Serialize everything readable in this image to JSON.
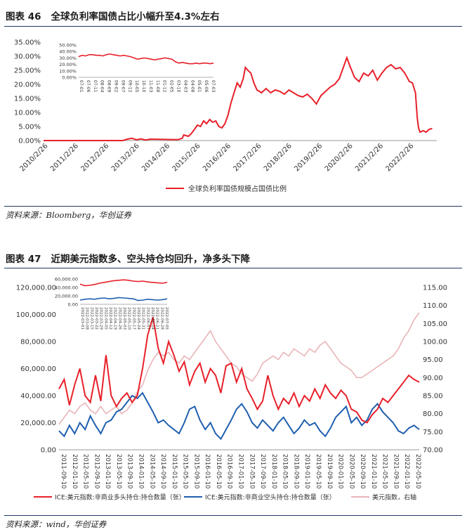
{
  "figure46": {
    "label": "图表 46",
    "title": "全球负利率国债占比小幅升至4.3%左右",
    "source": "资料来源：Bloomberg，华创证券"
  },
  "figure47": {
    "label": "图表 47",
    "title": "近期美元指数多、空头持仓均回升，净多头下降",
    "source": "资料来源：wind，华创证券"
  },
  "chart_data": [
    {
      "type": "line",
      "title": "全球负利率国债占比小幅升至4.3%左右",
      "ylim": [
        0,
        35
      ],
      "y_tick_labels": [
        "0.00%",
        "5.00%",
        "10.00%",
        "15.00%",
        "20.00%",
        "25.00%",
        "30.00%",
        "35.00%"
      ],
      "x_tick_labels": [
        "2010/2/26",
        "2011/2/26",
        "2012/2/26",
        "2013/2/26",
        "2014/2/26",
        "2015/2/26",
        "2016/2/26",
        "2017/2/26",
        "2018/2/26",
        "2019/2/26",
        "2020/2/26",
        "2021/2/26",
        "2022/2/26"
      ],
      "series": [
        {
          "name": "全球负利率国债规模占国债比例",
          "color": "#e8202a",
          "x": [
            2010.0,
            2012.6,
            2012.75,
            2012.9,
            2013.05,
            2013.2,
            2013.35,
            2013.5,
            2014.4,
            2014.55,
            2014.6,
            2014.75,
            2014.85,
            2014.95,
            2015.05,
            2015.15,
            2015.25,
            2015.35,
            2015.45,
            2015.55,
            2015.65,
            2015.75,
            2015.85,
            2015.95,
            2016.05,
            2016.15,
            2016.25,
            2016.35,
            2016.45,
            2016.55,
            2016.62,
            2016.7,
            2016.8,
            2016.9,
            2017.0,
            2017.15,
            2017.3,
            2017.45,
            2017.6,
            2017.75,
            2017.9,
            2018.05,
            2018.2,
            2018.35,
            2018.5,
            2018.65,
            2018.8,
            2018.95,
            2019.1,
            2019.25,
            2019.4,
            2019.55,
            2019.7,
            2019.85,
            2019.95,
            2020.05,
            2020.2,
            2020.35,
            2020.5,
            2020.65,
            2020.8,
            2020.95,
            2021.1,
            2021.25,
            2021.4,
            2021.55,
            2021.7,
            2021.85,
            2022.0,
            2022.1,
            2022.2,
            2022.26,
            2022.3,
            2022.35,
            2022.45,
            2022.55,
            2022.65,
            2022.75
          ],
          "values": [
            0.0,
            0.0,
            0.5,
            0.8,
            0.3,
            0.6,
            0.2,
            0.5,
            0.3,
            0.8,
            2.0,
            1.5,
            2.5,
            4.0,
            5.5,
            5.0,
            7.0,
            6.0,
            7.5,
            6.5,
            7.0,
            5.0,
            4.5,
            6.0,
            9.0,
            13.5,
            17.0,
            20.5,
            19.0,
            22.0,
            26.0,
            25.0,
            24.0,
            20.5,
            18.0,
            17.0,
            18.5,
            17.0,
            18.0,
            17.5,
            16.5,
            18.0,
            17.0,
            16.0,
            15.5,
            16.5,
            15.0,
            13.0,
            16.0,
            17.5,
            19.0,
            20.0,
            22.0,
            26.5,
            29.5,
            26.5,
            22.5,
            21.0,
            24.0,
            23.0,
            25.0,
            21.5,
            24.0,
            26.0,
            27.0,
            25.5,
            26.0,
            24.0,
            21.0,
            20.5,
            17.0,
            8.0,
            4.5,
            3.0,
            3.5,
            3.0,
            4.0,
            4.3
          ]
        }
      ],
      "inset": {
        "ylim": [
          0,
          50
        ],
        "y_tick_labels": [
          "0.00%",
          "10.00%",
          "20.00%",
          "30.00%",
          "40.00%",
          "50.00%"
        ],
        "x_tick_labels": [
          "07-01",
          "07-06",
          "07-11",
          "08-04",
          "08-09",
          "09-02",
          "09-07",
          "09-12",
          "10-05",
          "10-10",
          "11-03",
          "11-08",
          "01-12",
          "02-05",
          "03-10",
          "04-03",
          "04-08",
          "05-01",
          "05-06",
          "07-03"
        ],
        "values": [
          32,
          34,
          33,
          35,
          35,
          34,
          34,
          33,
          35,
          36,
          35,
          34,
          33,
          34,
          33,
          32,
          30,
          28,
          29,
          30,
          29,
          28,
          27,
          28,
          29,
          30,
          29,
          28,
          24,
          22,
          23,
          22,
          21,
          21,
          22,
          21,
          22,
          22,
          21,
          22
        ]
      }
    },
    {
      "type": "line",
      "title": "近期美元指数多、空头持仓均回升，净多头下降",
      "ylim_left": [
        0,
        120000
      ],
      "ylim_right": [
        70,
        115
      ],
      "y_left_tick_labels": [
        "0.00",
        "20,000.00",
        "40,000.00",
        "60,000.00",
        "80,000.00",
        "100,000.00",
        "120,000.00"
      ],
      "y_right_tick_labels": [
        "70.00",
        "75.00",
        "80.00",
        "85.00",
        "90.00",
        "95.00",
        "100.00",
        "105.00",
        "110.00",
        "115.00"
      ],
      "x_tick_labels": [
        "2011-09-10",
        "2012-01-10",
        "2012-05-10",
        "2012-09-10",
        "2013-01-10",
        "2013-05-10",
        "2013-09-10",
        "2014-01-10",
        "2014-05-10",
        "2014-09-10",
        "2015-01-10",
        "2015-05-10",
        "2015-09-10",
        "2016-01-10",
        "2016-05-10",
        "2016-09-10",
        "2017-01-10",
        "2017-05-10",
        "2017-09-10",
        "2018-01-10",
        "2018-05-10",
        "2018-09-10",
        "2019-01-10",
        "2019-05-10",
        "2019-09-10",
        "2020-01-10",
        "2020-05-10",
        "2020-09-10",
        "2021-01-10",
        "2021-05-10",
        "2021-09-10",
        "2022-01-10",
        "2022-05-10"
      ],
      "series": [
        {
          "name": "ICE:美元指数:非商业多头持仓:持仓数量（张）",
          "color": "#e8202a",
          "axis": "left",
          "values": [
            45000,
            52000,
            33000,
            48000,
            60000,
            40000,
            35000,
            55000,
            36000,
            70000,
            40000,
            32000,
            38000,
            42000,
            35000,
            40000,
            60000,
            85000,
            98000,
            75000,
            64000,
            80000,
            70000,
            58000,
            65000,
            48000,
            58000,
            64000,
            50000,
            60000,
            55000,
            42000,
            62000,
            64000,
            50000,
            60000,
            45000,
            38000,
            30000,
            36000,
            55000,
            40000,
            30000,
            38000,
            34000,
            42000,
            32000,
            40000,
            36000,
            45000,
            38000,
            48000,
            42000,
            38000,
            44000,
            40000,
            30000,
            28000,
            22000,
            20000,
            26000,
            30000,
            38000,
            35000,
            40000,
            45000,
            50000,
            55000,
            52000,
            50000
          ]
        },
        {
          "name": "ICE:美元指数:非商业空头持仓:持仓数量（张）",
          "color": "#1f5fae",
          "axis": "left",
          "values": [
            14000,
            10000,
            18000,
            12000,
            20000,
            15000,
            25000,
            18000,
            12000,
            20000,
            22000,
            28000,
            30000,
            35000,
            40000,
            38000,
            42000,
            35000,
            28000,
            20000,
            22000,
            18000,
            15000,
            12000,
            20000,
            30000,
            32000,
            22000,
            15000,
            20000,
            12000,
            8000,
            15000,
            22000,
            30000,
            34000,
            28000,
            20000,
            16000,
            22000,
            18000,
            14000,
            20000,
            24000,
            18000,
            12000,
            16000,
            22000,
            18000,
            20000,
            14000,
            10000,
            16000,
            24000,
            28000,
            32000,
            20000,
            24000,
            18000,
            22000,
            30000,
            34000,
            28000,
            24000,
            20000,
            14000,
            12000,
            16000,
            18000,
            15000
          ]
        },
        {
          "name": "美元指数，右轴",
          "color": "#e9b5b8",
          "axis": "right",
          "values": [
            77,
            79,
            81,
            80,
            82,
            83,
            81,
            80,
            82,
            80,
            81,
            82,
            80,
            81,
            83,
            86,
            88,
            92,
            95,
            97,
            96,
            97,
            95,
            94,
            96,
            95,
            97,
            99,
            101,
            103,
            100,
            98,
            96,
            94,
            93,
            91,
            90,
            89,
            91,
            94,
            95,
            96,
            95,
            97,
            96,
            98,
            97,
            96,
            98,
            97,
            99,
            100,
            98,
            96,
            94,
            93,
            92,
            90,
            90,
            91,
            92,
            93,
            94,
            95,
            96,
            98,
            101,
            103,
            106,
            108
          ]
        }
      ],
      "inset": {
        "ylim": [
          0,
          60000
        ],
        "y_tick_labels": [
          "0.00",
          "20,000.00",
          "40,000.00",
          "60,000.00"
        ],
        "x_tick_labels": [
          "2022-03-01",
          "2022-03-08",
          "2022-03-15",
          "2022-03-22",
          "2022-03-29",
          "2022-04-05",
          "2022-04-12",
          "2022-04-19",
          "2022-04-26",
          "2022-05-03",
          "2022-05-10",
          "2022-05-17",
          "2022-05-24",
          "2022-05-31",
          "2022-06-07",
          "2022-06-14",
          "2022-06-21",
          "2022-06-28",
          "2022-07-05"
        ],
        "series_long": [
          48000,
          44000,
          45000,
          47000,
          50000,
          52000,
          54000,
          56000,
          57000,
          58000,
          57000,
          55000,
          54000,
          55000,
          53000,
          52000,
          51000,
          50000,
          52000
        ],
        "series_short": [
          10000,
          12000,
          13000,
          12000,
          14000,
          15000,
          13000,
          14000,
          16000,
          15000,
          14000,
          13000,
          9000,
          10000,
          12000,
          11000,
          10000,
          11000,
          13000
        ]
      }
    }
  ]
}
